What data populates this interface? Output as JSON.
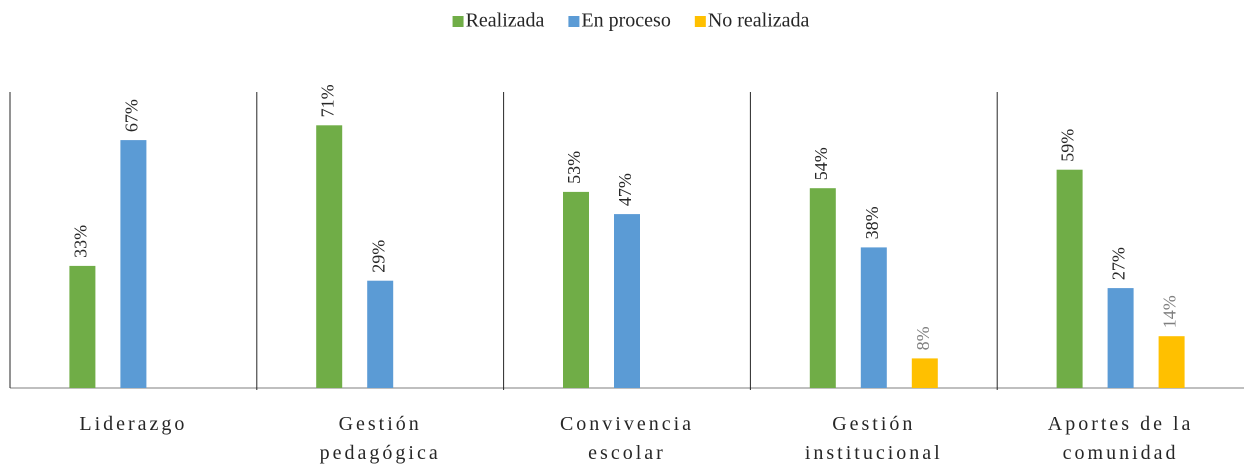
{
  "chart_data": {
    "type": "bar",
    "categories": [
      [
        "Liderazgo"
      ],
      [
        "Gestión",
        "pedagógica"
      ],
      [
        "Convivencia",
        "escolar"
      ],
      [
        "Gestión",
        "institucional"
      ],
      [
        "Aportes de la",
        "comunidad"
      ]
    ],
    "series": [
      {
        "name": "Realizada",
        "color": "#70ad47",
        "values": [
          33,
          71,
          53,
          54,
          59
        ],
        "value_labels": [
          "33%",
          "71%",
          "53%",
          "54%",
          "59%"
        ]
      },
      {
        "name": "En proceso",
        "color": "#5b9bd5",
        "values": [
          67,
          29,
          47,
          38,
          27
        ],
        "value_labels": [
          "67%",
          "29%",
          "47%",
          "38%",
          "27%"
        ]
      },
      {
        "name": "No realizada",
        "color": "#ffc000",
        "values": [
          null,
          null,
          null,
          8,
          14
        ],
        "value_labels": [
          null,
          null,
          null,
          "8%",
          "14%"
        ]
      }
    ],
    "ylim": [
      0,
      80
    ],
    "legend": "top"
  }
}
